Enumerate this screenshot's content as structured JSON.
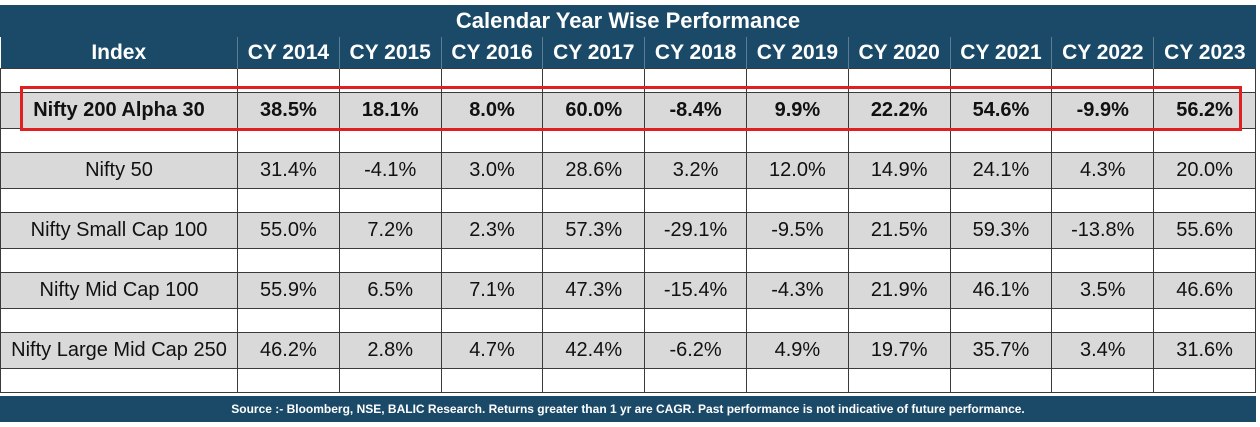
{
  "chart_data": {
    "type": "table",
    "title": "Calendar Year Wise Performance",
    "columns": [
      "Index",
      "CY 2014",
      "CY 2015",
      "CY 2016",
      "CY 2017",
      "CY 2018",
      "CY 2019",
      "CY 2020",
      "CY 2021",
      "CY 2022",
      "CY 2023"
    ],
    "rows": [
      {
        "name": "Nifty 200 Alpha 30",
        "highlighted": true,
        "values": [
          "38.5%",
          "18.1%",
          "8.0%",
          "60.0%",
          "-8.4%",
          "9.9%",
          "22.2%",
          "54.6%",
          "-9.9%",
          "56.2%"
        ]
      },
      {
        "name": "Nifty 50",
        "highlighted": false,
        "values": [
          "31.4%",
          "-4.1%",
          "3.0%",
          "28.6%",
          "3.2%",
          "12.0%",
          "14.9%",
          "24.1%",
          "4.3%",
          "20.0%"
        ]
      },
      {
        "name": "Nifty Small Cap 100",
        "highlighted": false,
        "values": [
          "55.0%",
          "7.2%",
          "2.3%",
          "57.3%",
          "-29.1%",
          "-9.5%",
          "21.5%",
          "59.3%",
          "-13.8%",
          "55.6%"
        ]
      },
      {
        "name": "Nifty Mid Cap 100",
        "highlighted": false,
        "values": [
          "55.9%",
          "6.5%",
          "7.1%",
          "47.3%",
          "-15.4%",
          "-4.3%",
          "21.9%",
          "46.1%",
          "3.5%",
          "46.6%"
        ]
      },
      {
        "name": "Nifty Large Mid Cap 250",
        "highlighted": false,
        "values": [
          "46.2%",
          "2.8%",
          "4.7%",
          "42.4%",
          "-6.2%",
          "4.9%",
          "19.7%",
          "35.7%",
          "3.4%",
          "31.6%"
        ]
      }
    ],
    "footnote": "Source :- Bloomberg, NSE, BALIC Research. Returns greater than 1 yr are CAGR. Past performance is not indicative of future performance."
  },
  "colors": {
    "header_bg": "#1b4a68",
    "header_text": "#ffffff",
    "row_bg": "#d9d9d9",
    "highlight_border": "#e02020"
  }
}
